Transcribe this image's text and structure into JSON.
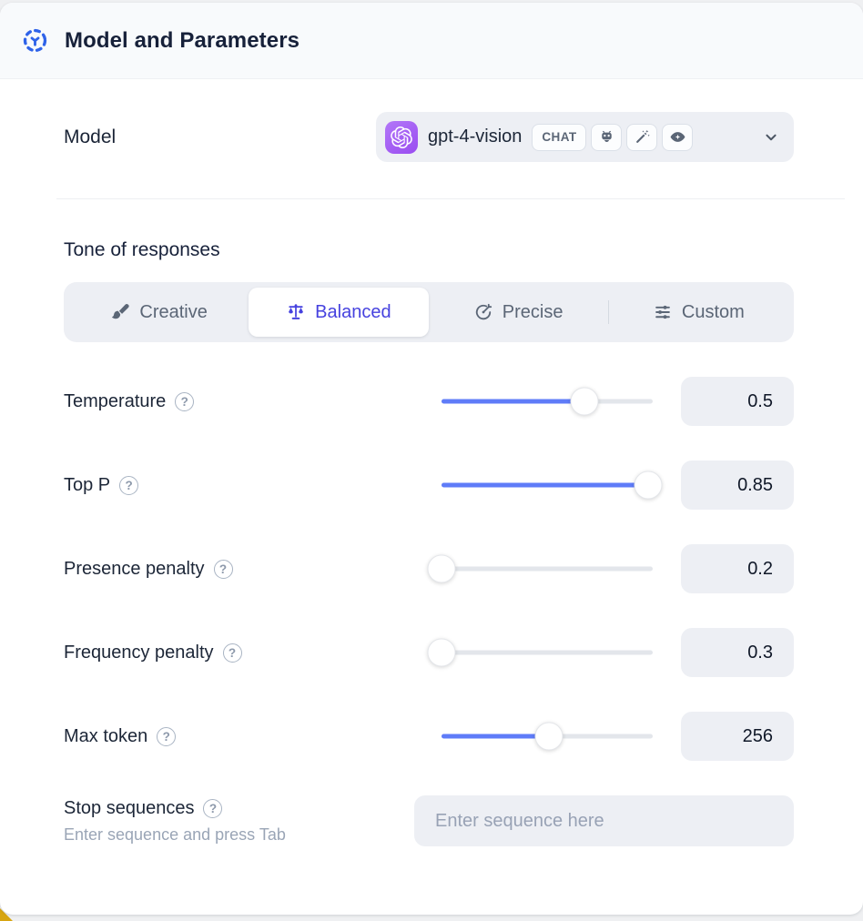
{
  "window": {
    "title": "Model and Parameters",
    "icon": "model-hub-icon"
  },
  "model_section": {
    "label": "Model",
    "selector": {
      "model_name": "gpt-4-vision",
      "type_badge": "CHAT",
      "provider_icon": "openai-logo",
      "capability_icons": [
        "robot-icon",
        "magic-wand-icon",
        "vision-eye-icon"
      ],
      "chevron_icon": "chevron-down-icon"
    }
  },
  "tone_section": {
    "heading": "Tone of responses",
    "tabs": [
      {
        "label": "Creative",
        "icon": "paintbrush-icon",
        "selected": false
      },
      {
        "label": "Balanced",
        "icon": "balance-scale-icon",
        "selected": true
      },
      {
        "label": "Precise",
        "icon": "target-arrow-icon",
        "selected": false
      },
      {
        "label": "Custom",
        "icon": "sliders-icon",
        "selected": false
      }
    ]
  },
  "parameters": [
    {
      "label": "Temperature",
      "value": "0.5",
      "slider_percent": 67.5
    },
    {
      "label": "Top P",
      "value": "0.85",
      "slider_percent": 98
    },
    {
      "label": "Presence penalty",
      "value": "0.2",
      "slider_percent": 0
    },
    {
      "label": "Frequency penalty",
      "value": "0.3",
      "slider_percent": 0
    },
    {
      "label": "Max token",
      "value": "256",
      "slider_percent": 51
    }
  ],
  "stop_sequences": {
    "label": "Stop sequences",
    "hint": "Enter sequence and press Tab",
    "placeholder": "Enter sequence here",
    "value": ""
  },
  "glyphs": {
    "question": "?"
  },
  "colors": {
    "accent_blue": "#5f7cf8",
    "selected_indigo": "#4642df",
    "provider_purple": "#9a4cf0",
    "header_icon_blue": "#2f63e9"
  }
}
